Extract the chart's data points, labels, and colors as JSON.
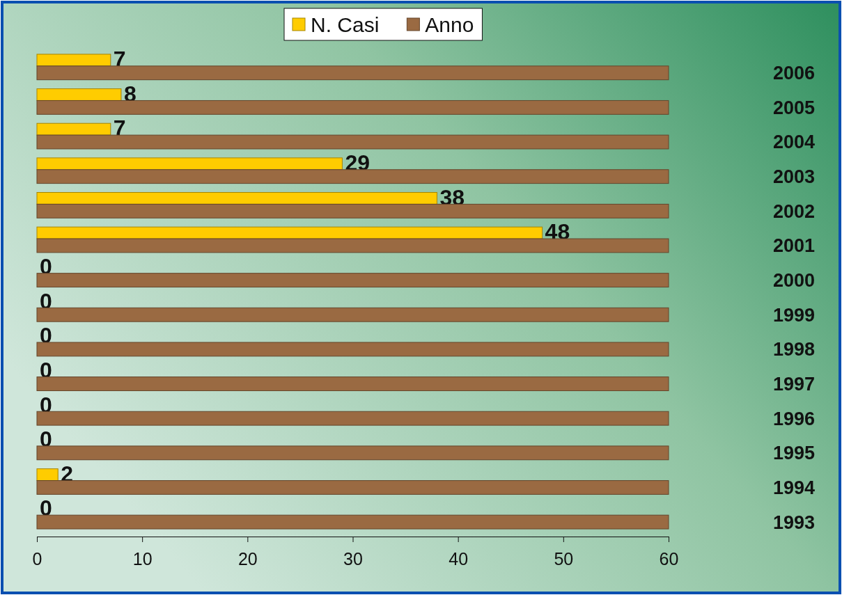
{
  "chart_data": {
    "type": "bar",
    "orientation": "horizontal",
    "categories": [
      "2006",
      "2005",
      "2004",
      "2003",
      "2002",
      "2001",
      "2000",
      "1999",
      "1998",
      "1997",
      "1996",
      "1995",
      "1994",
      "1993"
    ],
    "series": [
      {
        "name": "N. Casi",
        "color": "#ffcc00",
        "values": [
          7,
          8,
          7,
          29,
          38,
          48,
          0,
          0,
          0,
          0,
          0,
          0,
          2,
          0
        ],
        "value_labels": [
          "7",
          "8",
          "7",
          "29",
          "38",
          "48",
          "0",
          "0",
          "0",
          "0",
          "0",
          "0",
          "2",
          "0"
        ]
      },
      {
        "name": "Anno",
        "color": "#9a6a42",
        "values": [
          60,
          60,
          60,
          60,
          60,
          60,
          60,
          60,
          60,
          60,
          60,
          60,
          60,
          60
        ]
      }
    ],
    "xlim": [
      0,
      60
    ],
    "xticks": [
      0,
      10,
      20,
      30,
      40,
      50,
      60
    ],
    "grid": false,
    "legend": "top"
  }
}
